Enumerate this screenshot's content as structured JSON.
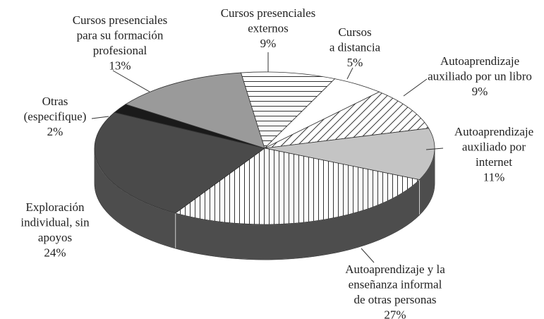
{
  "chart_data": {
    "type": "pie",
    "categories": [
      [
        "Cursos presenciales",
        "externos"
      ],
      [
        "Cursos",
        "a distancia"
      ],
      [
        "Autoaprendizaje",
        "auxiliado por un libro"
      ],
      [
        "Autoaprendizaje",
        "auxiliado por",
        "internet"
      ],
      [
        "Autoaprendizaje y la",
        "enseñanza informal",
        "de otras personas"
      ],
      [
        "Exploración",
        "individual, sin",
        "apoyos"
      ],
      [
        "Otras",
        "(especifique)"
      ],
      [
        "Cursos presenciales",
        "para su formación",
        "profesional"
      ]
    ],
    "values": [
      9,
      5,
      9,
      11,
      27,
      24,
      2,
      13
    ],
    "value_labels": [
      "9%",
      "5%",
      "9%",
      "11%",
      "27%",
      "24%",
      "2%",
      "13%"
    ],
    "colors": [
      "#ffffff",
      "#ffffff",
      "#ffffff",
      "#c4c4c4",
      "#ffffff",
      "#4a4a4a",
      "#1a1a1a",
      "#9a9a9a"
    ],
    "patterns": [
      "horizontal",
      null,
      "diagonal",
      null,
      "vertical",
      null,
      null,
      null
    ]
  }
}
